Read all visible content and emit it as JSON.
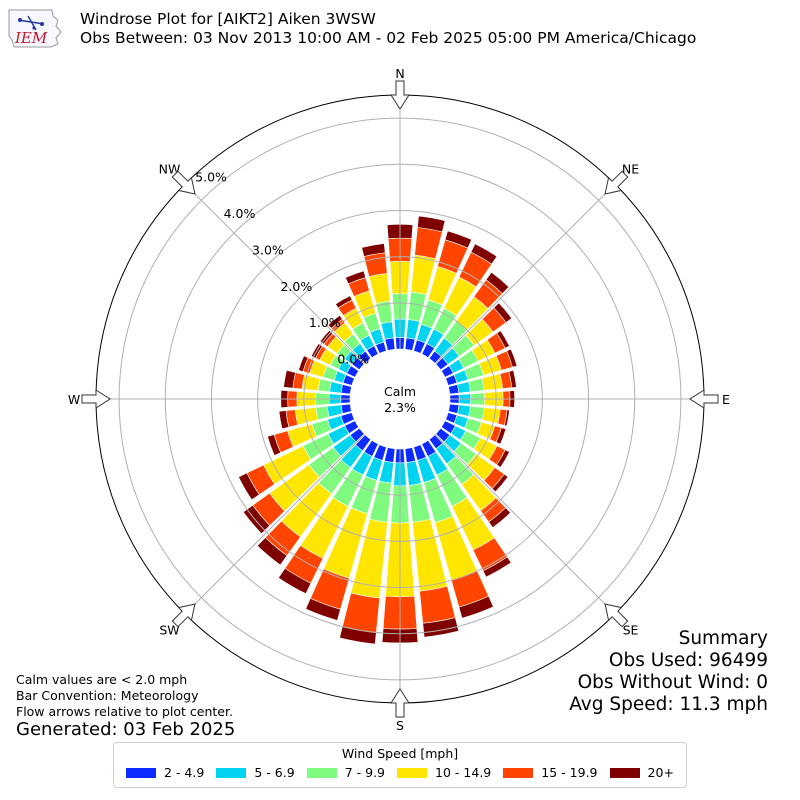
{
  "header": {
    "title_line1": "Windrose Plot for [AIKT2] Aiken 3WSW",
    "title_line2": "Obs Between: 03 Nov 2013 10:00 AM - 02 Feb 2025 05:00 PM America/Chicago",
    "logo_text": "IEM"
  },
  "summary": {
    "heading": "Summary",
    "obs_used": "Obs Used: 96499",
    "obs_without_wind": "Obs Without Wind: 0",
    "avg_speed": "Avg Speed: 11.3 mph"
  },
  "notes": {
    "line1": "Calm values are < 2.0 mph",
    "line2": "Bar Convention: Meteorology",
    "line3": "Flow arrows relative to plot center.",
    "generated": "Generated: 03 Feb 2025"
  },
  "chart_data": {
    "type": "windrose",
    "calm_label": "Calm",
    "calm_percent": "2.3%",
    "calm_value": 2.3,
    "radial_ticks": [
      0,
      1,
      2,
      3,
      4,
      5
    ],
    "radial_tick_labels": [
      "0.0%",
      "1.0%",
      "2.0%",
      "3.0%",
      "4.0%",
      "5.0%"
    ],
    "rmax": 5.5,
    "compass_labels": [
      {
        "dir": 0,
        "label": "N"
      },
      {
        "dir": 45,
        "label": "NE"
      },
      {
        "dir": 90,
        "label": "E"
      },
      {
        "dir": 135,
        "label": "SE"
      },
      {
        "dir": 180,
        "label": "S"
      },
      {
        "dir": 225,
        "label": "SW"
      },
      {
        "dir": 270,
        "label": "W"
      },
      {
        "dir": 315,
        "label": "NW"
      }
    ],
    "legend_title": "Wind Speed [mph]",
    "bins": [
      {
        "label": "2 - 4.9",
        "color": "#0c2cff"
      },
      {
        "label": "5 - 6.9",
        "color": "#00d4f0"
      },
      {
        "label": "7 - 9.9",
        "color": "#7efb7e"
      },
      {
        "label": "10 - 14.9",
        "color": "#ffe600"
      },
      {
        "label": "15 - 19.9",
        "color": "#ff4500"
      },
      {
        "label": "20+",
        "color": "#7e0000"
      }
    ],
    "directions": [
      0,
      10,
      20,
      30,
      40,
      50,
      60,
      70,
      80,
      90,
      100,
      110,
      120,
      130,
      140,
      150,
      160,
      170,
      180,
      190,
      200,
      210,
      220,
      230,
      240,
      250,
      260,
      270,
      280,
      290,
      300,
      310,
      320,
      330,
      340,
      350
    ],
    "cumulative": [
      [
        0.25,
        0.65,
        1.2,
        1.9,
        2.4,
        2.7
      ],
      [
        0.25,
        0.65,
        1.25,
        2.05,
        2.65,
        2.9
      ],
      [
        0.25,
        0.6,
        1.15,
        1.9,
        2.5,
        2.7
      ],
      [
        0.25,
        0.6,
        1.1,
        1.85,
        2.45,
        2.65
      ],
      [
        0.2,
        0.55,
        1.0,
        1.65,
        2.1,
        2.3
      ],
      [
        0.2,
        0.5,
        0.9,
        1.4,
        1.75,
        1.9
      ],
      [
        0.2,
        0.45,
        0.8,
        1.2,
        1.45,
        1.55
      ],
      [
        0.2,
        0.45,
        0.8,
        1.2,
        1.45,
        1.55
      ],
      [
        0.2,
        0.45,
        0.75,
        1.15,
        1.35,
        1.45
      ],
      [
        0.2,
        0.45,
        0.75,
        1.15,
        1.3,
        1.4
      ],
      [
        0.2,
        0.45,
        0.75,
        1.1,
        1.25,
        1.3
      ],
      [
        0.2,
        0.45,
        0.75,
        1.05,
        1.2,
        1.3
      ],
      [
        0.25,
        0.5,
        0.85,
        1.25,
        1.45,
        1.55
      ],
      [
        0.25,
        0.55,
        0.95,
        1.45,
        1.7,
        1.8
      ],
      [
        0.25,
        0.65,
        1.2,
        1.9,
        2.2,
        2.35
      ],
      [
        0.3,
        0.75,
        1.5,
        2.55,
        3.05,
        3.2
      ],
      [
        0.3,
        0.8,
        1.7,
        3.0,
        3.6,
        3.85
      ],
      [
        0.3,
        0.8,
        1.6,
        3.1,
        3.8,
        4.1
      ],
      [
        0.3,
        0.8,
        1.6,
        3.2,
        3.9,
        4.2
      ],
      [
        0.3,
        0.75,
        1.6,
        3.25,
        4.0,
        4.25
      ],
      [
        0.3,
        0.75,
        1.5,
        2.95,
        3.65,
        3.9
      ],
      [
        0.3,
        0.75,
        1.5,
        2.75,
        3.35,
        3.6
      ],
      [
        0.3,
        0.75,
        1.45,
        2.6,
        3.1,
        3.35
      ],
      [
        0.25,
        0.7,
        1.35,
        2.4,
        2.85,
        3.1
      ],
      [
        0.25,
        0.65,
        1.25,
        2.2,
        2.6,
        2.8
      ],
      [
        0.25,
        0.55,
        0.9,
        1.45,
        1.75,
        1.9
      ],
      [
        0.2,
        0.5,
        0.75,
        1.2,
        1.4,
        1.55
      ],
      [
        0.2,
        0.45,
        0.75,
        1.15,
        1.35,
        1.5
      ],
      [
        0.2,
        0.45,
        0.7,
        1.05,
        1.25,
        1.45
      ],
      [
        0.2,
        0.4,
        0.65,
        0.95,
        1.1,
        1.2
      ],
      [
        0.2,
        0.4,
        0.6,
        0.85,
        0.95,
        1.05
      ],
      [
        0.2,
        0.4,
        0.6,
        0.85,
        0.95,
        1.05
      ],
      [
        0.2,
        0.4,
        0.65,
        0.95,
        1.05,
        1.15
      ],
      [
        0.2,
        0.45,
        0.75,
        1.1,
        1.3,
        1.4
      ],
      [
        0.2,
        0.5,
        0.85,
        1.35,
        1.65,
        1.8
      ],
      [
        0.25,
        0.6,
        1.05,
        1.65,
        2.1,
        2.3
      ]
    ]
  }
}
